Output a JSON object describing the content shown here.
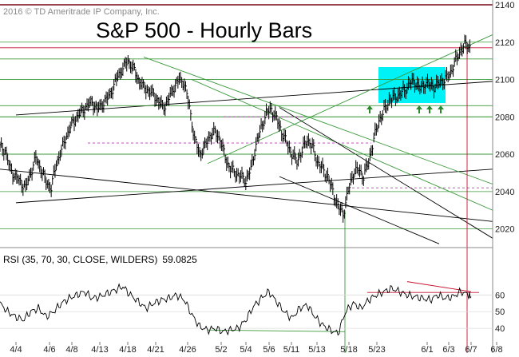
{
  "chart_data": [
    {
      "type": "ohlc-bar",
      "title": "S&P 500 - Hourly Bars",
      "copyright": "2016 © TD Ameritrade IP Company, Inc.",
      "ylim": [
        2010,
        2140
      ],
      "yticks": [
        2020,
        2040,
        2060,
        2080,
        2100,
        2120,
        2140
      ],
      "xticks": [
        "4/4",
        "4/6",
        "4/8",
        "4/13",
        "4/18",
        "4/21",
        "4/26",
        "5/2",
        "5/4",
        "5/6",
        "5/11",
        "5/13",
        "5/18",
        "5/23",
        "6/1",
        "6/3",
        "6/7",
        "6/8"
      ],
      "grid": "horizontal",
      "colors": {
        "price": "#000000",
        "horizontal_support": "#3a9a3a",
        "trend_black": "#000000",
        "trend_green": "#3a9a3a",
        "resistance_red": "#c8102e",
        "dashed_level": "#b040b0",
        "highlight_box": "#00f2f6",
        "arrows": "#2a8a2a"
      },
      "series": [
        {
          "values": [
            [
              0,
              2064
            ],
            [
              2,
              2062
            ],
            [
              4,
              2052
            ],
            [
              6,
              2048
            ],
            [
              8,
              2045
            ],
            [
              10,
              2042
            ],
            [
              12,
              2050
            ],
            [
              14,
              2058
            ],
            [
              16,
              2052
            ],
            [
              18,
              2045
            ],
            [
              20,
              2042
            ],
            [
              22,
              2055
            ],
            [
              24,
              2062
            ],
            [
              26,
              2070
            ],
            [
              28,
              2076
            ],
            [
              30,
              2080
            ],
            [
              32,
              2083
            ],
            [
              34,
              2086
            ],
            [
              36,
              2088
            ],
            [
              38,
              2084
            ],
            [
              40,
              2087
            ],
            [
              42,
              2090
            ],
            [
              44,
              2095
            ],
            [
              46,
              2102
            ],
            [
              48,
              2106
            ],
            [
              50,
              2110
            ],
            [
              52,
              2106
            ],
            [
              54,
              2100
            ],
            [
              56,
              2096
            ],
            [
              58,
              2094
            ],
            [
              60,
              2092
            ],
            [
              62,
              2088
            ],
            [
              64,
              2085
            ],
            [
              66,
              2090
            ],
            [
              68,
              2096
            ],
            [
              70,
              2100
            ],
            [
              72,
              2098
            ],
            [
              74,
              2085
            ],
            [
              76,
              2068
            ],
            [
              78,
              2060
            ],
            [
              80,
              2064
            ],
            [
              82,
              2070
            ],
            [
              84,
              2072
            ],
            [
              86,
              2068
            ],
            [
              88,
              2058
            ],
            [
              90,
              2052
            ],
            [
              92,
              2050
            ],
            [
              94,
              2048
            ],
            [
              96,
              2046
            ],
            [
              98,
              2052
            ],
            [
              100,
              2065
            ],
            [
              102,
              2074
            ],
            [
              104,
              2082
            ],
            [
              106,
              2084
            ],
            [
              108,
              2079
            ],
            [
              110,
              2072
            ],
            [
              112,
              2066
            ],
            [
              114,
              2060
            ],
            [
              116,
              2056
            ],
            [
              118,
              2062
            ],
            [
              120,
              2068
            ],
            [
              122,
              2064
            ],
            [
              124,
              2056
            ],
            [
              126,
              2052
            ],
            [
              128,
              2048
            ],
            [
              130,
              2040
            ],
            [
              132,
              2032
            ],
            [
              134,
              2028
            ],
            [
              136,
              2040
            ],
            [
              138,
              2050
            ],
            [
              140,
              2052
            ],
            [
              142,
              2048
            ],
            [
              144,
              2056
            ],
            [
              146,
              2068
            ],
            [
              148,
              2078
            ],
            [
              150,
              2083
            ],
            [
              152,
              2089
            ],
            [
              154,
              2090
            ],
            [
              156,
              2092
            ],
            [
              158,
              2094
            ],
            [
              160,
              2098
            ],
            [
              162,
              2099
            ],
            [
              164,
              2095
            ],
            [
              166,
              2098
            ],
            [
              168,
              2097
            ],
            [
              170,
              2096
            ],
            [
              172,
              2099
            ],
            [
              174,
              2100
            ],
            [
              176,
              2104
            ],
            [
              178,
              2110
            ],
            [
              180,
              2116
            ],
            [
              182,
              2119
            ],
            [
              184,
              2117
            ]
          ]
        },
        {
          "name": "RSI (35, 70, 30, CLOSE, WILDERS)",
          "last_value": "59.0825",
          "ylim": [
            30,
            75
          ],
          "yticks": [
            40,
            50,
            60
          ],
          "values": [
            [
              0,
              55
            ],
            [
              3,
              50
            ],
            [
              6,
              47
            ],
            [
              9,
              45
            ],
            [
              12,
              50
            ],
            [
              15,
              52
            ],
            [
              18,
              47
            ],
            [
              21,
              50
            ],
            [
              24,
              55
            ],
            [
              27,
              58
            ],
            [
              30,
              60
            ],
            [
              33,
              62
            ],
            [
              36,
              58
            ],
            [
              39,
              59
            ],
            [
              42,
              61
            ],
            [
              45,
              63
            ],
            [
              48,
              65
            ],
            [
              51,
              60
            ],
            [
              54,
              56
            ],
            [
              57,
              52
            ],
            [
              60,
              55
            ],
            [
              63,
              57
            ],
            [
              66,
              58
            ],
            [
              69,
              60
            ],
            [
              72,
              57
            ],
            [
              75,
              48
            ],
            [
              78,
              41
            ],
            [
              81,
              39
            ],
            [
              84,
              40
            ],
            [
              87,
              38
            ],
            [
              90,
              39
            ],
            [
              93,
              40
            ],
            [
              96,
              45
            ],
            [
              99,
              53
            ],
            [
              102,
              58
            ],
            [
              105,
              62
            ],
            [
              108,
              56
            ],
            [
              111,
              50
            ],
            [
              114,
              46
            ],
            [
              117,
              52
            ],
            [
              120,
              54
            ],
            [
              123,
              47
            ],
            [
              126,
              42
            ],
            [
              129,
              39
            ],
            [
              132,
              37
            ],
            [
              135,
              50
            ],
            [
              138,
              55
            ],
            [
              141,
              52
            ],
            [
              144,
              57
            ],
            [
              147,
              60
            ],
            [
              150,
              62
            ],
            [
              153,
              64
            ],
            [
              156,
              62
            ],
            [
              159,
              60
            ],
            [
              162,
              59
            ],
            [
              165,
              58
            ],
            [
              168,
              57
            ],
            [
              171,
              60
            ],
            [
              174,
              58
            ],
            [
              177,
              59
            ],
            [
              180,
              62
            ],
            [
              183,
              60
            ],
            [
              184,
              59
            ]
          ]
        }
      ]
    }
  ]
}
